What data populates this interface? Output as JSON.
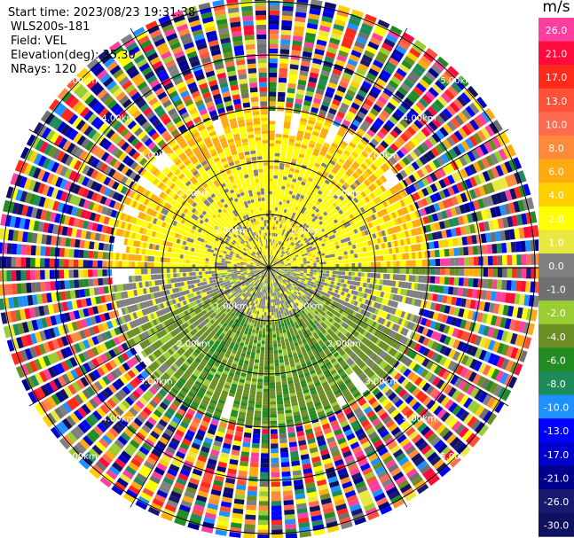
{
  "header": {
    "start_time": "Start time: 2023/08/23 19:31:38",
    "instrument": "WLS200s-181",
    "field": "Field: VEL",
    "elevation": "Elevation(deg): 35.30",
    "nrays": "NRays: 120"
  },
  "colorbar": {
    "unit": "m/s",
    "levels": [
      {
        "label": "26.0",
        "color": "#ff3fa0"
      },
      {
        "label": "21.0",
        "color": "#ff0a3c"
      },
      {
        "label": "17.0",
        "color": "#ff2a1a"
      },
      {
        "label": "13.0",
        "color": "#ff5038"
      },
      {
        "label": "10.0",
        "color": "#ff6a50"
      },
      {
        "label": "8.0",
        "color": "#ff8a3a"
      },
      {
        "label": "6.0",
        "color": "#ffaa10"
      },
      {
        "label": "4.0",
        "color": "#ffd000"
      },
      {
        "label": "2.0",
        "color": "#ffff00"
      },
      {
        "label": "1.0",
        "color": "#e8e840"
      },
      {
        "label": "0.0",
        "color": "#808080"
      },
      {
        "label": "-1.0",
        "color": "#707070"
      },
      {
        "label": "-2.0",
        "color": "#9acd32"
      },
      {
        "label": "-4.0",
        "color": "#6b8e23"
      },
      {
        "label": "-6.0",
        "color": "#228b22"
      },
      {
        "label": "-8.0",
        "color": "#1e8c5a"
      },
      {
        "label": "-10.0",
        "color": "#1e90ff"
      },
      {
        "label": "-13.0",
        "color": "#0000ff"
      },
      {
        "label": "-17.0",
        "color": "#0000cd"
      },
      {
        "label": "-21.0",
        "color": "#00008b"
      },
      {
        "label": "-26.0",
        "color": "#191970"
      },
      {
        "label": "-30.0",
        "color": "#101060"
      }
    ]
  },
  "range_labels": [
    "1.00km",
    "2.00km",
    "3.00km",
    "4.00km",
    "5.00km"
  ],
  "chart_data": {
    "type": "heatmap",
    "plot_type": "PPI (polar) Doppler radial velocity",
    "field": "VEL",
    "unit": "m/s",
    "elevation_deg": 35.3,
    "n_rays": 120,
    "range_rings_km": [
      1,
      2,
      3,
      4,
      5
    ],
    "spoke_interval_deg": 30,
    "colorbar_ticks": [
      26.0,
      21.0,
      17.0,
      13.0,
      10.0,
      8.0,
      6.0,
      4.0,
      2.0,
      1.0,
      0.0,
      -1.0,
      -2.0,
      -4.0,
      -6.0,
      -8.0,
      -10.0,
      -13.0,
      -17.0,
      -21.0,
      -26.0,
      -30.0
    ],
    "regions": [
      {
        "range_km": [
          0,
          1.0
        ],
        "description": "near-zero velocity, grey/yellow mix",
        "value_approx": 0.5
      },
      {
        "range_km": [
          1.0,
          2.9
        ],
        "azimuth_deg": [
          270,
          90
        ],
        "description": "northern half, positive velocity (yellow ~2 m/s, orange ~4-6 m/s)",
        "value_approx": 2.5
      },
      {
        "range_km": [
          1.0,
          2.9
        ],
        "azimuth_deg": [
          90,
          270
        ],
        "description": "southern half, negative velocity (green ~-2 to -6 m/s)",
        "value_approx": -3.0
      },
      {
        "range_km": [
          3.0,
          5.2
        ],
        "description": "noise beyond valid range, random colors over full scale"
      }
    ]
  }
}
